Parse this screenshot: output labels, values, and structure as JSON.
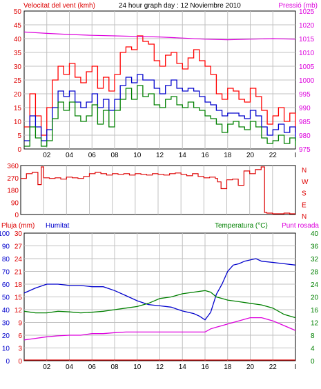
{
  "header": {
    "wind_title": "Velocitat del vent (kmh)",
    "graph_title": "24 hour graph day : 12 Noviembre 2010",
    "pressure_title": "Pressió (mb)"
  },
  "colors": {
    "wind_gust": "#ff0000",
    "wind_avg": "#0000cc",
    "wind_min": "#008000",
    "pressure": "#dd00dd",
    "direction": "#dd0000",
    "temperature": "#008000",
    "humidity": "#0000cc",
    "dewpoint": "#dd00dd",
    "rain": "#dd0000"
  },
  "x_ticks": [
    "02",
    "04",
    "06",
    "08",
    "10",
    "12",
    "14",
    "16",
    "18",
    "20",
    "22",
    "I"
  ],
  "chart_data": [
    {
      "type": "line",
      "title": "24 hour graph day : 12 Noviembre 2010",
      "ylabel": "Velocitat del vent (kmh)",
      "y2label": "Pressió (mb)",
      "ylim": [
        0,
        50
      ],
      "y2lim": [
        975,
        1025
      ],
      "y_ticks": [
        0,
        5,
        10,
        15,
        20,
        25,
        30,
        35,
        40,
        45,
        50
      ],
      "y2_ticks": [
        975,
        980,
        985,
        990,
        995,
        1000,
        1005,
        1010,
        1015,
        1020,
        1025
      ],
      "xlim": [
        0,
        24
      ],
      "grid": true,
      "series": [
        {
          "key": "gust",
          "axis": "left",
          "x": [
            0,
            0.5,
            1,
            1.5,
            2,
            2.5,
            3,
            3.5,
            4,
            4.5,
            5,
            5.5,
            6,
            6.5,
            7,
            7.5,
            8,
            8.5,
            9,
            9.5,
            10,
            10.5,
            11,
            11.5,
            12,
            12.5,
            13,
            13.5,
            14,
            14.5,
            15,
            15.5,
            16,
            16.5,
            17,
            17.5,
            18,
            18.5,
            19,
            19.5,
            20,
            20.5,
            21,
            21.5,
            22,
            22.5,
            23,
            23.5,
            24
          ],
          "y": [
            8,
            20,
            12,
            5,
            15,
            25,
            30,
            27,
            31,
            26,
            24,
            28,
            30,
            22,
            26,
            21,
            27,
            35,
            37,
            36,
            41,
            39,
            38,
            32,
            30,
            34,
            35,
            31,
            29,
            33,
            36,
            32,
            30,
            27,
            20,
            18,
            22,
            21,
            18,
            17,
            22,
            19,
            14,
            9,
            12,
            15,
            10,
            13,
            6
          ]
        },
        {
          "key": "avg",
          "axis": "left",
          "x": [
            0,
            0.5,
            1,
            1.5,
            2,
            2.5,
            3,
            3.5,
            4,
            4.5,
            5,
            5.5,
            6,
            6.5,
            7,
            7.5,
            8,
            8.5,
            9,
            9.5,
            10,
            10.5,
            11,
            11.5,
            12,
            12.5,
            13,
            13.5,
            14,
            14.5,
            15,
            15.5,
            16,
            16.5,
            17,
            17.5,
            18,
            18.5,
            19,
            19.5,
            20,
            20.5,
            21,
            21.5,
            22,
            22.5,
            23,
            23.5,
            24
          ],
          "y": [
            3,
            12,
            8,
            3,
            7,
            15,
            21,
            19,
            21,
            17,
            15,
            17,
            20,
            15,
            18,
            14,
            18,
            23,
            26,
            24,
            27,
            25,
            25,
            22,
            20,
            23,
            25,
            22,
            21,
            22,
            21,
            19,
            17,
            16,
            14,
            12,
            13,
            13,
            12,
            11,
            14,
            12,
            8,
            5,
            7,
            9,
            6,
            8,
            3
          ]
        },
        {
          "key": "min",
          "axis": "left",
          "x": [
            0,
            0.5,
            1,
            1.5,
            2,
            2.5,
            3,
            3.5,
            4,
            4.5,
            5,
            5.5,
            6,
            6.5,
            7,
            7.5,
            8,
            8.5,
            9,
            9.5,
            10,
            10.5,
            11,
            11.5,
            12,
            12.5,
            13,
            13.5,
            14,
            14.5,
            15,
            15.5,
            16,
            16.5,
            17,
            17.5,
            18,
            18.5,
            19,
            19.5,
            20,
            20.5,
            21,
            21.5,
            22,
            22.5,
            23,
            23.5,
            24
          ],
          "y": [
            1,
            8,
            4,
            1,
            3,
            11,
            17,
            14,
            17,
            12,
            10,
            12,
            16,
            9,
            14,
            8,
            14,
            18,
            22,
            18,
            23,
            19,
            20,
            16,
            15,
            18,
            19,
            16,
            15,
            17,
            15,
            14,
            12,
            11,
            9,
            6,
            9,
            10,
            8,
            7,
            10,
            8,
            4,
            2,
            3,
            5,
            2,
            4,
            1
          ]
        },
        {
          "key": "pressure",
          "axis": "right",
          "x": [
            0,
            2,
            4,
            6,
            8,
            10,
            12,
            14,
            16,
            18,
            20,
            22,
            24
          ],
          "y": [
            1017.4,
            1016.9,
            1016.5,
            1016.2,
            1016.0,
            1015.8,
            1015.6,
            1015.2,
            1014.8,
            1014.6,
            1014.8,
            1015.0,
            1014.8
          ]
        }
      ]
    },
    {
      "type": "scatter",
      "ylabel_letters": [
        "N",
        "W",
        "S",
        "E",
        "N"
      ],
      "ylim": [
        0,
        360
      ],
      "y_ticks": [
        0,
        90,
        180,
        270,
        360
      ],
      "xlim": [
        0,
        24
      ],
      "series": [
        {
          "key": "direction",
          "x": [
            0,
            0.5,
            1,
            1.5,
            1.8,
            2,
            2.5,
            3,
            3.5,
            4,
            4.5,
            5,
            5.5,
            6,
            6.5,
            7,
            7.5,
            8,
            8.5,
            9,
            9.5,
            10,
            10.5,
            11,
            11.5,
            12,
            12.5,
            13,
            13.5,
            14,
            14.5,
            15,
            15.5,
            16,
            16.5,
            17,
            17.2,
            17.5,
            18,
            18.5,
            19,
            19.5,
            20,
            20.5,
            21,
            21.3,
            21.5,
            22,
            22.5,
            23,
            23.5,
            24
          ],
          "y": [
            265,
            300,
            310,
            220,
            350,
            270,
            265,
            270,
            260,
            275,
            270,
            265,
            280,
            300,
            310,
            300,
            290,
            300,
            295,
            300,
            290,
            300,
            295,
            290,
            300,
            295,
            290,
            300,
            305,
            295,
            285,
            300,
            280,
            270,
            275,
            265,
            240,
            190,
            255,
            260,
            215,
            320,
            300,
            330,
            350,
            15,
            10,
            5,
            5,
            10,
            5,
            5
          ]
        }
      ]
    },
    {
      "type": "line",
      "ylabel_rain": "Pluja (mm)",
      "ylabel_humidity": "Humitat",
      "ylabel_temperature": "Temperatura (°C)",
      "ylabel_dewpoint": "Punt rosada",
      "humidity_ticks": [
        0,
        10,
        20,
        30,
        40,
        50,
        60,
        70,
        80,
        90,
        100
      ],
      "rain_ticks": [
        0,
        3,
        6,
        9,
        12,
        15,
        18,
        21,
        24,
        27,
        30
      ],
      "temp_ticks": [
        0,
        4,
        8,
        12,
        16,
        20,
        24,
        28,
        32,
        36,
        40
      ],
      "humidity_lim": [
        0,
        100
      ],
      "rain_lim": [
        0,
        30
      ],
      "temp_lim": [
        0,
        40
      ],
      "xlim": [
        0,
        24
      ],
      "grid": true,
      "series": [
        {
          "key": "humidity",
          "axis": "humidity",
          "x": [
            0,
            1,
            2,
            3,
            4,
            5,
            6,
            7,
            8,
            9,
            10,
            11,
            12,
            13,
            14,
            15,
            15.5,
            16,
            16.5,
            17,
            17.5,
            18,
            18.5,
            19,
            19.5,
            20,
            20.5,
            21,
            22,
            23,
            24
          ],
          "y": [
            53,
            57,
            60,
            60,
            59,
            59,
            58,
            58,
            55,
            51,
            47,
            44,
            43,
            42,
            39,
            37,
            35,
            32,
            38,
            52,
            60,
            70,
            75,
            76,
            78,
            79,
            80,
            78,
            77,
            76,
            75
          ]
        },
        {
          "key": "temperature",
          "axis": "temperature",
          "x": [
            0,
            1,
            2,
            3,
            4,
            5,
            6,
            7,
            8,
            9,
            10,
            11,
            12,
            13,
            14,
            15,
            16,
            16.5,
            17,
            17.5,
            18,
            19,
            20,
            21,
            22,
            23,
            24
          ],
          "y": [
            15.5,
            15.0,
            15.0,
            15.5,
            15.3,
            15.0,
            15.2,
            15.5,
            16.0,
            16.5,
            17.0,
            18.0,
            19.5,
            20.0,
            21.0,
            21.5,
            22.0,
            21.5,
            20.0,
            19.5,
            19.0,
            18.5,
            18.0,
            17.5,
            16.5,
            14.5,
            13.5
          ]
        },
        {
          "key": "dewpoint",
          "axis": "temperature",
          "x": [
            0,
            1,
            2,
            3,
            4,
            5,
            6,
            7,
            8,
            9,
            10,
            11,
            12,
            13,
            14,
            15,
            16,
            16.5,
            17,
            17.5,
            18,
            18.5,
            19,
            19.5,
            20,
            20.5,
            21,
            22,
            23,
            24
          ],
          "y": [
            6.5,
            7.0,
            7.5,
            7.8,
            8.0,
            8.0,
            8.5,
            8.5,
            8.8,
            9.0,
            9.0,
            9.0,
            9.0,
            9.0,
            9.0,
            9.0,
            9.0,
            10.0,
            10.5,
            11.0,
            11.5,
            12.0,
            12.5,
            13.0,
            13.5,
            13.5,
            13.5,
            12.5,
            11.0,
            9.5
          ]
        },
        {
          "key": "rain",
          "axis": "rain",
          "x": [
            0,
            24
          ],
          "y": [
            0,
            0
          ]
        }
      ]
    }
  ]
}
